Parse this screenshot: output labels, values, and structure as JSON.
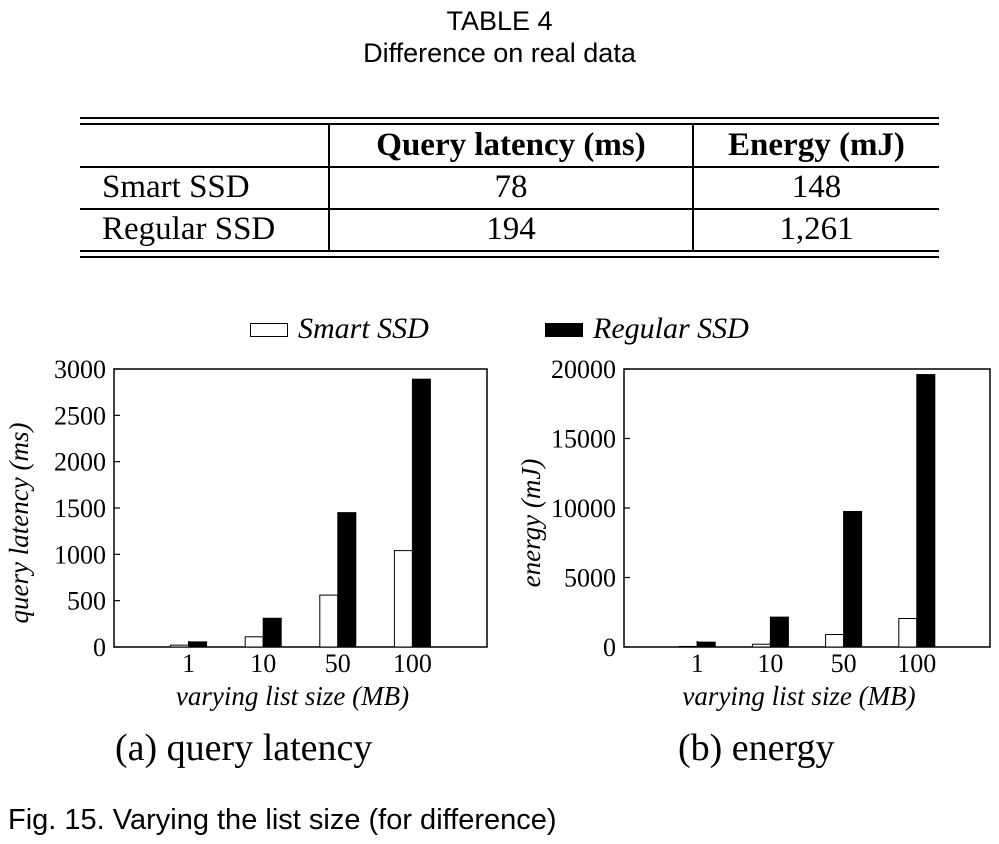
{
  "table": {
    "label": "TABLE 4",
    "caption": "Difference on real data",
    "headers": [
      "",
      "Query latency (ms)",
      "Energy (mJ)"
    ],
    "rows": [
      {
        "name": "Smart SSD",
        "latency": "78",
        "energy": "148"
      },
      {
        "name": "Regular SSD",
        "latency": "194",
        "energy": "1,261"
      }
    ]
  },
  "legend": {
    "series": [
      {
        "name": "Smart SSD",
        "color": "#ffffff"
      },
      {
        "name": "Regular SSD",
        "color": "#000000"
      }
    ]
  },
  "chart_data": [
    {
      "type": "bar",
      "subcaption": "(a) query latency",
      "categories": [
        "1",
        "10",
        "50",
        "100"
      ],
      "series": [
        {
          "name": "Smart SSD",
          "values": [
            20,
            110,
            560,
            1040
          ],
          "color": "#ffffff"
        },
        {
          "name": "Regular SSD",
          "values": [
            55,
            310,
            1450,
            2890
          ],
          "color": "#000000"
        }
      ],
      "xlabel": "varying list size (MB)",
      "ylabel": "query latency (ms)",
      "ylim": [
        0,
        3000
      ],
      "yticks": [
        0,
        500,
        1000,
        1500,
        2000,
        2500,
        3000
      ],
      "grid": false
    },
    {
      "type": "bar",
      "subcaption": "(b) energy",
      "categories": [
        "1",
        "10",
        "50",
        "100"
      ],
      "series": [
        {
          "name": "Smart SSD",
          "values": [
            40,
            200,
            900,
            2050
          ],
          "color": "#ffffff"
        },
        {
          "name": "Regular SSD",
          "values": [
            350,
            2150,
            9750,
            19600
          ],
          "color": "#000000"
        }
      ],
      "xlabel": "varying list size (MB)",
      "ylabel": "energy (mJ)",
      "ylim": [
        0,
        20000
      ],
      "yticks": [
        0,
        5000,
        10000,
        15000,
        20000
      ],
      "grid": false
    }
  ],
  "figure_caption": "Fig. 15. Varying the list size (for difference)"
}
